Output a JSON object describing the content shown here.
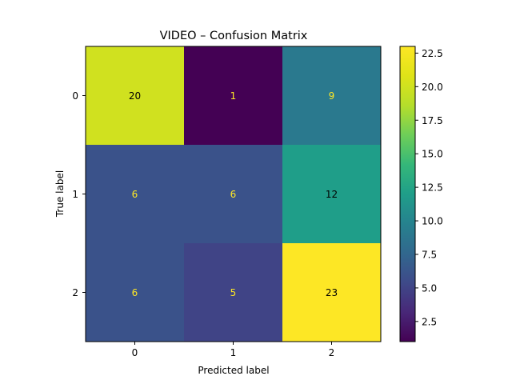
{
  "chart_data": {
    "type": "heatmap",
    "title": "VIDEO – Confusion Matrix",
    "xlabel": "Predicted label",
    "ylabel": "True label",
    "x_categories": [
      "0",
      "1",
      "2"
    ],
    "y_categories": [
      "0",
      "1",
      "2"
    ],
    "values": [
      [
        20,
        1,
        9
      ],
      [
        6,
        6,
        12
      ],
      [
        6,
        5,
        23
      ]
    ],
    "colormap": "viridis",
    "color_range": [
      1,
      23
    ],
    "colorbar_ticks": [
      "2.5",
      "5.0",
      "7.5",
      "10.0",
      "12.5",
      "15.0",
      "17.5",
      "20.0",
      "22.5"
    ],
    "colorbar_tick_values": [
      2.5,
      5.0,
      7.5,
      10.0,
      12.5,
      15.0,
      17.5,
      20.0,
      22.5
    ],
    "text_colors": {
      "light": "#fde725",
      "dark": "#000000"
    }
  }
}
